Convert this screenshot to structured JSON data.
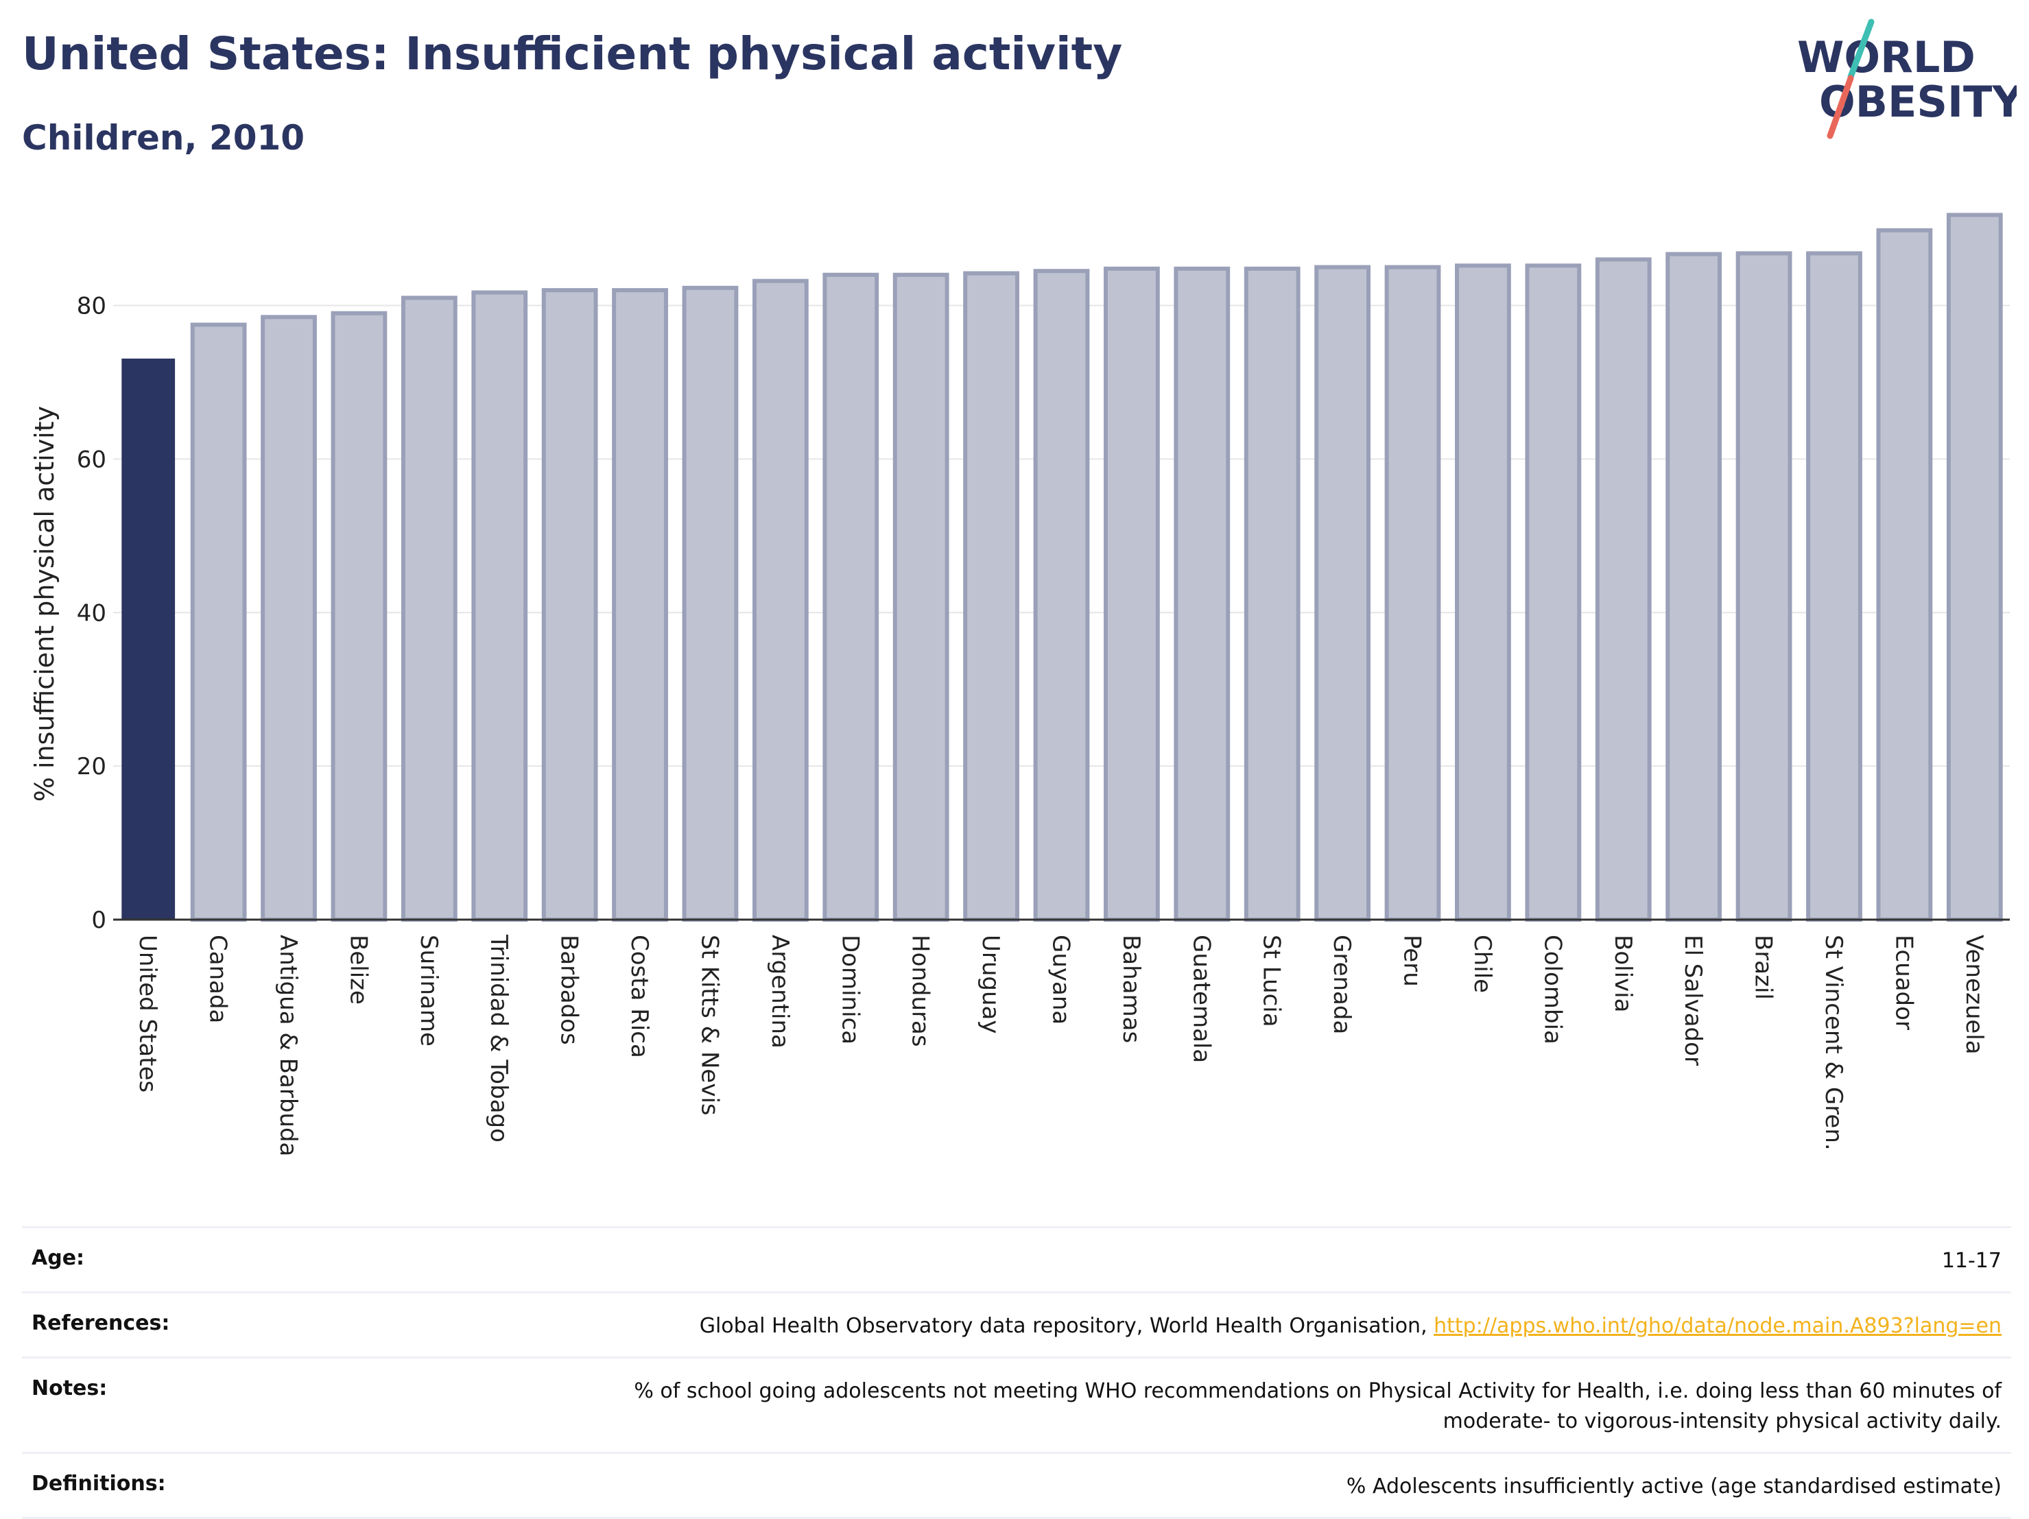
{
  "header": {
    "title": "United States: Insufficient physical activity",
    "subtitle": "Children, 2010"
  },
  "logo": {
    "line1": "WORLD",
    "line2": "OBESITY",
    "colors": {
      "text": "#2b3561",
      "slash_top": "#3fbfb3",
      "slash_bottom": "#e8675a"
    }
  },
  "colors": {
    "highlight_bar": "#2b3561",
    "other_bar_fill": "#bfc3d1",
    "other_bar_stroke": "#9aa0b8",
    "axis": "#333333",
    "grid": "#e6e6e6"
  },
  "chart_data": {
    "type": "bar",
    "title": "United States: Insufficient physical activity",
    "subtitle": "Children, 2010",
    "xlabel": "",
    "ylabel": "% insufficient physical activity",
    "ylim": [
      0,
      93
    ],
    "yticks": [
      0,
      20,
      40,
      60,
      80
    ],
    "grid": true,
    "highlight": "United States",
    "categories": [
      "United States",
      "Canada",
      "Antigua & Barbuda",
      "Belize",
      "Suriname",
      "Trinidad & Tobago",
      "Barbados",
      "Costa Rica",
      "St Kitts & Nevis",
      "Argentina",
      "Dominica",
      "Honduras",
      "Uruguay",
      "Guyana",
      "Bahamas",
      "Guatemala",
      "St Lucia",
      "Grenada",
      "Peru",
      "Chile",
      "Colombia",
      "Bolivia",
      "El Salvador",
      "Brazil",
      "St Vincent & Gren.",
      "Ecuador",
      "Venezuela"
    ],
    "values": [
      73.0,
      77.5,
      78.5,
      79.0,
      81.0,
      81.7,
      82.0,
      82.0,
      82.3,
      83.2,
      84.0,
      84.0,
      84.2,
      84.5,
      84.8,
      84.8,
      84.8,
      85.0,
      85.0,
      85.2,
      85.2,
      86.0,
      86.7,
      86.8,
      86.8,
      89.8,
      91.8
    ]
  },
  "info": [
    {
      "label": "Age:",
      "value": "11-17"
    },
    {
      "label": "References:",
      "value": "Global Health Observatory data repository, World Health Organisation, ",
      "link": "http://apps.who.int/gho/data/node.main.A893?lang=en"
    },
    {
      "label": "Notes:",
      "value": "% of school going adolescents not meeting WHO recommendations on Physical Activity for Health, i.e. doing less than 60 minutes of",
      "value2": "moderate- to vigorous-intensity physical activity daily."
    },
    {
      "label": "Definitions:",
      "value": "% Adolescents insufficiently active (age standardised estimate)"
    }
  ]
}
